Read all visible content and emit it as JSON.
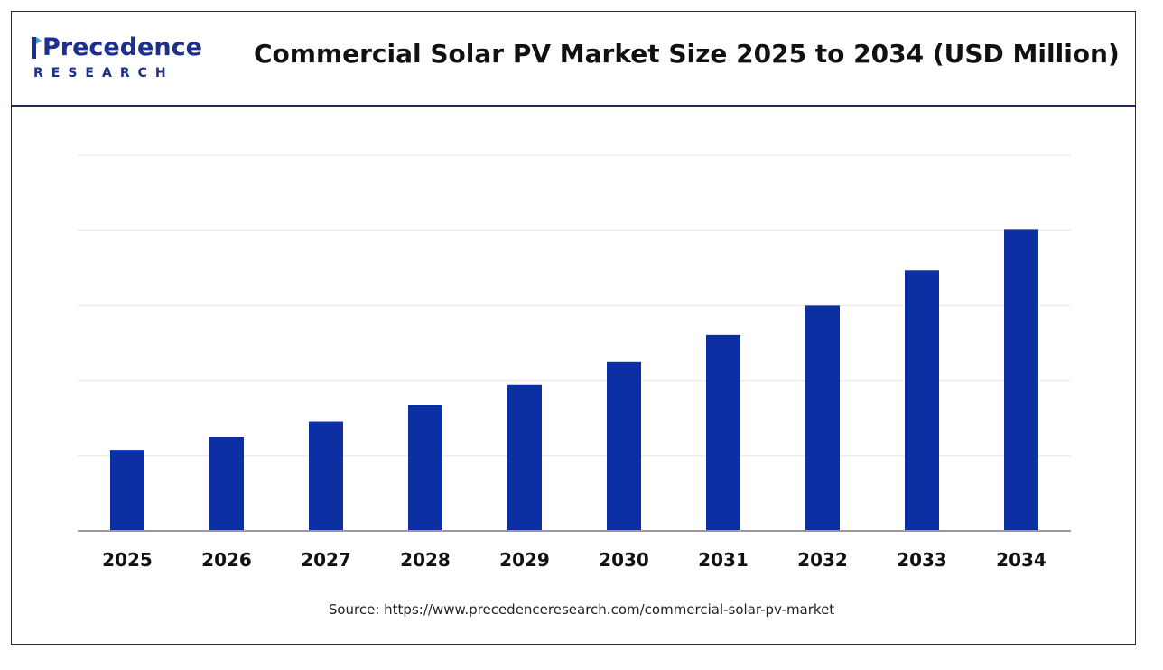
{
  "header": {
    "logo_name": "Precedence",
    "logo_sub": "RESEARCH",
    "title": "Commercial Solar PV Market Size 2025 to 2034 (USD Million)"
  },
  "footer": {
    "source": "Source: https://www.precedenceresearch.com/commercial-solar-pv-market"
  },
  "colors": {
    "bar": "#0c2fa3",
    "brand": "#1d2f8c",
    "grid": "#e6e6e6",
    "axis": "#999999"
  },
  "chart_data": {
    "type": "bar",
    "categories": [
      "2025",
      "2026",
      "2027",
      "2028",
      "2029",
      "2030",
      "2031",
      "2032",
      "2033",
      "2034"
    ],
    "values": [
      5.4,
      6.25,
      7.3,
      8.4,
      9.75,
      11.25,
      13.05,
      15.0,
      17.35,
      20.05
    ],
    "title": "",
    "xlabel": "",
    "ylabel": "",
    "ylim": [
      0,
      25
    ],
    "grid": true,
    "legend": "none"
  }
}
